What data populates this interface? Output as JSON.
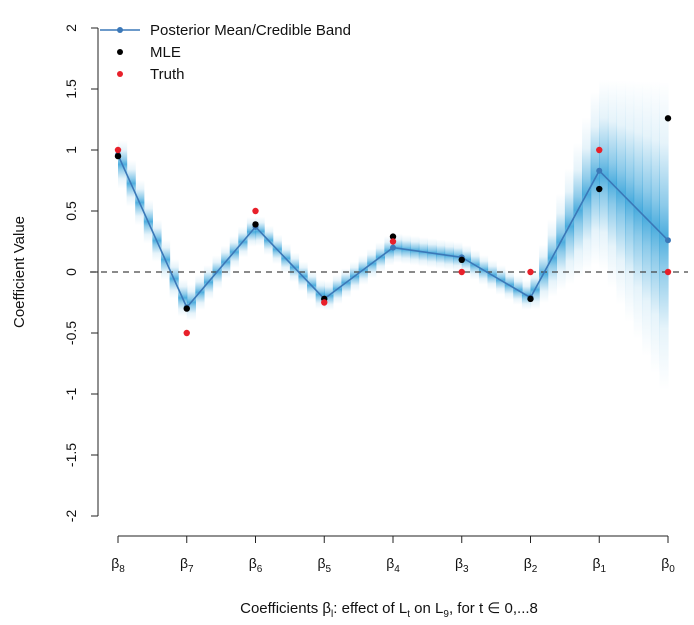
{
  "chart_data": {
    "type": "line",
    "title": "",
    "xlabel": "Coefficients β",
    "xlabel_sub": "l",
    "xlabel_rest_1": ": effect of L",
    "xlabel_sub_t": "t",
    "xlabel_rest_2": " on L",
    "xlabel_sub_9": "9",
    "xlabel_rest_3": ", for t ∈ 0,...8",
    "ylabel": "Coefficient Value",
    "ylim": [
      -2,
      2
    ],
    "yticks": [
      "-2",
      "-1.5",
      "-1",
      "-0.5",
      "0",
      "0.5",
      "1",
      "1.5",
      "2"
    ],
    "ytick_values": [
      -2,
      -1.5,
      -1,
      -0.5,
      0,
      0.5,
      1,
      1.5,
      2
    ],
    "reference_line": 0,
    "categories": [
      {
        "base": "β",
        "sub": "8"
      },
      {
        "base": "β",
        "sub": "7"
      },
      {
        "base": "β",
        "sub": "6"
      },
      {
        "base": "β",
        "sub": "5"
      },
      {
        "base": "β",
        "sub": "4"
      },
      {
        "base": "β",
        "sub": "3"
      },
      {
        "base": "β",
        "sub": "2"
      },
      {
        "base": "β",
        "sub": "1"
      },
      {
        "base": "β",
        "sub": "0"
      }
    ],
    "series": [
      {
        "name": "Posterior Mean/Credible Band",
        "color": "#3b78b8",
        "values": [
          0.96,
          -0.29,
          0.37,
          -0.22,
          0.2,
          0.12,
          -0.21,
          0.83,
          0.26
        ]
      },
      {
        "name": "MLE",
        "color": "#000000",
        "values": [
          0.95,
          -0.3,
          0.39,
          -0.22,
          0.29,
          0.1,
          -0.22,
          0.68,
          1.26
        ]
      },
      {
        "name": "Truth",
        "color": "#e8202a",
        "values": [
          1.0,
          -0.5,
          0.5,
          -0.25,
          0.25,
          0.0,
          0.0,
          1.0,
          0.0
        ]
      }
    ],
    "band_halfwidth": [
      0.2,
      0.15,
      0.12,
      0.12,
      0.12,
      0.12,
      0.12,
      0.75,
      1.3
    ],
    "band_color": "#2e9fd8",
    "legend_position": "top-left"
  }
}
